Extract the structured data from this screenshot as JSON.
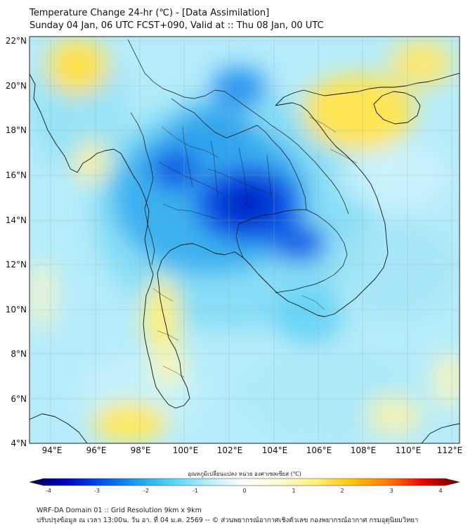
{
  "title": {
    "line1": "Temperature Change 24-hr (℃) - [Data Assimilation]",
    "line2": "Sunday 04 Jan, 06 UTC FCST+090, Valid at :: Thu 08 Jan, 00 UTC"
  },
  "map": {
    "lon_range": [
      93,
      112.3
    ],
    "lat_range": [
      4,
      22.2
    ],
    "lat_ticks": [
      "22°N",
      "20°N",
      "18°N",
      "16°N",
      "14°N",
      "12°N",
      "10°N",
      "8°N",
      "6°N",
      "4°N"
    ],
    "lon_ticks": [
      "94°E",
      "96°E",
      "98°E",
      "100°E",
      "102°E",
      "104°E",
      "106°E",
      "108°E",
      "110°E",
      "112°E"
    ],
    "field": "24-hr temperature change (°C)",
    "features": [
      {
        "label": "strong cooling core",
        "lon": 102.8,
        "lat": 14.8,
        "value": -3.5
      },
      {
        "label": "cooling",
        "lon": 105.3,
        "lat": 12.9,
        "value": -3.0
      },
      {
        "label": "cooling",
        "lon": 99.5,
        "lat": 16.3,
        "value": -3.0
      },
      {
        "label": "cooling",
        "lon": 102.5,
        "lat": 20.0,
        "value": -2.6
      },
      {
        "label": "warming",
        "lon": 95.2,
        "lat": 20.5,
        "value": 0.9
      },
      {
        "label": "warming",
        "lon": 108.8,
        "lat": 19.3,
        "value": 1.0
      },
      {
        "label": "warming",
        "lon": 98.5,
        "lat": 9.5,
        "value": 0.8
      },
      {
        "label": "warming",
        "lon": 97.5,
        "lat": 4.8,
        "value": 0.9
      }
    ]
  },
  "colorbar": {
    "title": "อุณหภูมิเปลี่ยนแปลง หน่วย องศาเซลเซียส (℃)",
    "ticks": [
      "-4",
      "-3",
      "-2",
      "-1",
      "0",
      "1",
      "2",
      "3",
      "4"
    ],
    "range": [
      -4,
      4
    ],
    "colors": [
      "#00004a",
      "#0000c0",
      "#0050e8",
      "#1aa0f0",
      "#55d6f5",
      "#b8eefa",
      "#ffffff",
      "#fffad0",
      "#fff07a",
      "#ffc400",
      "#ff7a00",
      "#e80000",
      "#600000"
    ]
  },
  "footer": {
    "line1": "WRF-DA Domain 01 :: Grid Resolution 9km x 9km",
    "line2": "ปรับปรุงข้อมูล ณ เวลา 13:00น. วัน อา. ที่ 04 ม.ค. 2569 -- © ส่วนพยากรณ์อากาศเชิงตัวเลข กองพยากรณ์อากาศ กรมอุตุนิยมวิทยา"
  }
}
